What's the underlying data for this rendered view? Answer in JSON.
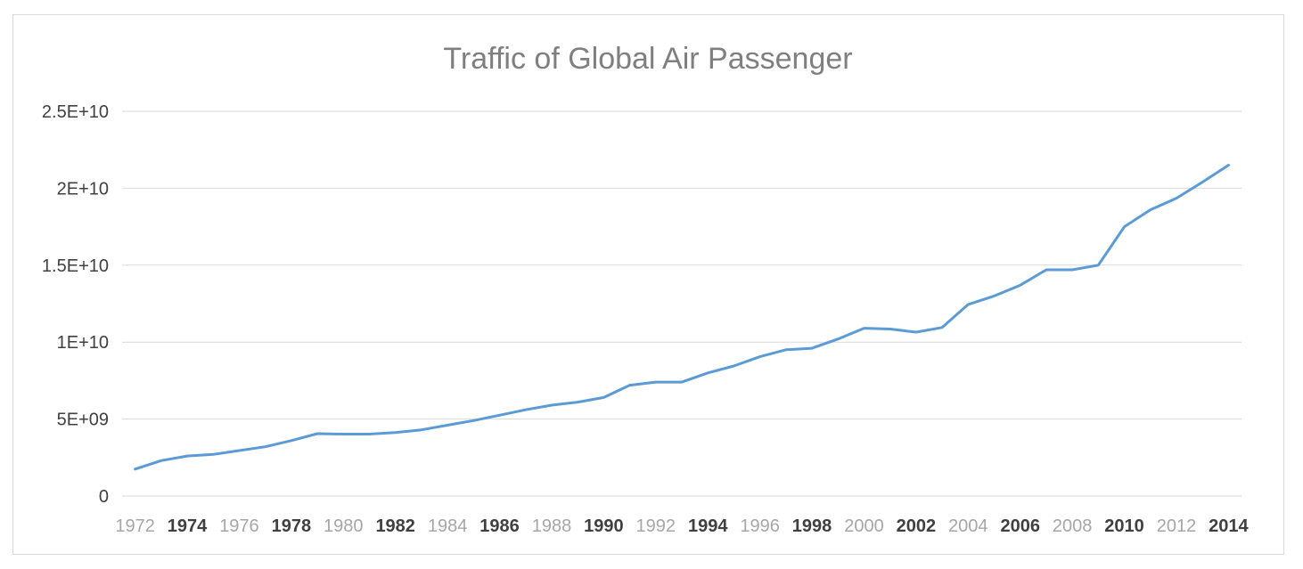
{
  "chart_data": {
    "type": "line",
    "title": "Traffic of Global Air Passenger",
    "xlabel": "",
    "ylabel": "",
    "ylim": [
      0,
      25000000000
    ],
    "yticks": [
      0,
      5000000000,
      10000000000,
      15000000000,
      20000000000,
      25000000000
    ],
    "ytick_labels": [
      "0",
      "5E+09",
      "1E+10",
      "1.5E+10",
      "2E+10",
      "2.5E+10"
    ],
    "x": [
      1972,
      1973,
      1974,
      1975,
      1976,
      1977,
      1978,
      1979,
      1980,
      1981,
      1982,
      1983,
      1984,
      1985,
      1986,
      1987,
      1988,
      1989,
      1990,
      1991,
      1992,
      1993,
      1994,
      1995,
      1996,
      1997,
      1998,
      1999,
      2000,
      2001,
      2002,
      2003,
      2004,
      2005,
      2006,
      2007,
      2008,
      2009,
      2010,
      2011,
      2012,
      2013,
      2014
    ],
    "xtick_labels": [
      {
        "label": "1972",
        "bold": false
      },
      {
        "label": "1974",
        "bold": true
      },
      {
        "label": "1976",
        "bold": false
      },
      {
        "label": "1978",
        "bold": true
      },
      {
        "label": "1980",
        "bold": false
      },
      {
        "label": "1982",
        "bold": true
      },
      {
        "label": "1984",
        "bold": false
      },
      {
        "label": "1986",
        "bold": true
      },
      {
        "label": "1988",
        "bold": false
      },
      {
        "label": "1990",
        "bold": true
      },
      {
        "label": "1992",
        "bold": false
      },
      {
        "label": "1994",
        "bold": true
      },
      {
        "label": "1996",
        "bold": false
      },
      {
        "label": "1998",
        "bold": true
      },
      {
        "label": "2000",
        "bold": false
      },
      {
        "label": "2002",
        "bold": true
      },
      {
        "label": "2004",
        "bold": false
      },
      {
        "label": "2006",
        "bold": true
      },
      {
        "label": "2008",
        "bold": false
      },
      {
        "label": "2010",
        "bold": true
      },
      {
        "label": "2012",
        "bold": false
      },
      {
        "label": "2014",
        "bold": true
      }
    ],
    "series": [
      {
        "values": [
          1750000000,
          2300000000,
          2600000000,
          2700000000,
          2950000000,
          3200000000,
          3600000000,
          4050000000,
          4020000000,
          4020000000,
          4120000000,
          4300000000,
          4600000000,
          4900000000,
          5250000000,
          5600000000,
          5900000000,
          6100000000,
          6400000000,
          7200000000,
          7400000000,
          7400000000,
          8000000000,
          8450000000,
          9050000000,
          9500000000,
          9600000000,
          10200000000,
          10900000000,
          10850000000,
          10650000000,
          10950000000,
          12450000000,
          13000000000,
          13700000000,
          14700000000,
          14700000000,
          15000000000,
          17500000000,
          18600000000,
          19350000000,
          20400000000,
          21500000000
        ],
        "color": "#5b9bd5"
      }
    ],
    "grid": true,
    "legend": "none"
  }
}
